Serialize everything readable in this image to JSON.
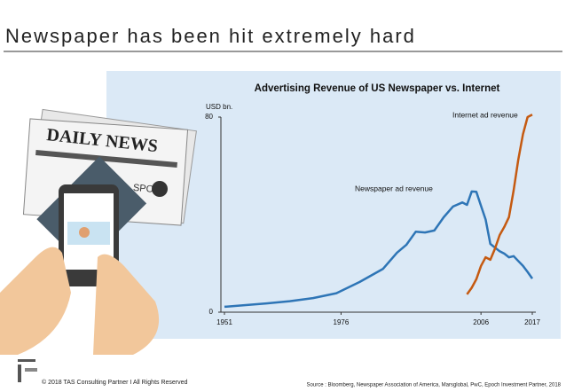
{
  "header": {
    "title": "Newspaper has been hit extremely hard"
  },
  "illustration": {
    "masthead": "DAILY NEWS",
    "section": "SPORT"
  },
  "chart_data": {
    "type": "line",
    "title": "Advertising Revenue of US Newspaper vs. Internet",
    "y_label": "USD bn.",
    "x": [
      1951,
      1955,
      1960,
      1965,
      1970,
      1975,
      1980,
      1985,
      1988,
      1990,
      1992,
      1994,
      1996,
      1998,
      2000,
      2002,
      2003,
      2004,
      2005,
      2006,
      2007,
      2008,
      2009,
      2010,
      2011,
      2012,
      2013,
      2014,
      2015,
      2016,
      2017
    ],
    "xlim": [
      1951,
      2017
    ],
    "xticks": [
      1951,
      1976,
      2006,
      2017
    ],
    "ylim": [
      0,
      80
    ],
    "yticks": [
      0,
      80
    ],
    "series": [
      {
        "name": "Newspaper ad revenue",
        "color": "#2e75b6",
        "values": [
          2.2,
          2.8,
          3.6,
          4.5,
          5.8,
          7.8,
          12.4,
          17.8,
          24.4,
          27.6,
          33,
          32.7,
          33.5,
          38.9,
          43.3,
          45,
          44,
          49.5,
          49.4,
          43.6,
          38,
          28,
          26.5,
          25,
          24,
          22.5,
          23,
          21,
          19,
          16.5,
          13.8
        ]
      },
      {
        "name": "Internet ad revenue",
        "color": "#c55a11",
        "values": [
          null,
          null,
          null,
          null,
          null,
          null,
          null,
          null,
          null,
          null,
          null,
          null,
          null,
          null,
          null,
          null,
          7.3,
          10,
          13.5,
          19,
          22.5,
          21.5,
          26,
          31.6,
          35,
          39,
          50,
          62.5,
          73,
          80,
          81
        ]
      }
    ]
  },
  "footer": {
    "copyright": "© 2018 TAS Consulting Partner  I  All Rights Reserved",
    "source": "Source : Bloomberg, Newspaper Association of America, Marsglobal,  PwC, Epoch Investment Partner, 2018"
  }
}
